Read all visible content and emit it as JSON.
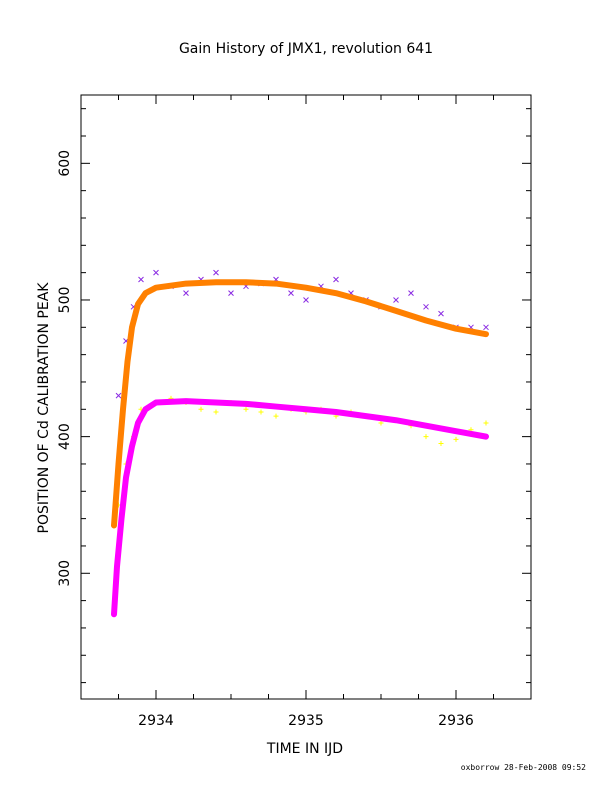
{
  "chart_data": {
    "type": "scatter",
    "title": "Gain History of JMX1, revolution 641",
    "xlabel": "TIME IN IJD",
    "ylabel": "POSITION OF Cd CALIBRATION PEAK",
    "xlim": [
      2933.5,
      2936.5
    ],
    "ylim": [
      208,
      650
    ],
    "x_ticks": [
      2934,
      2935,
      2936
    ],
    "x_tick_labels": [
      "2934",
      "2935",
      "2936"
    ],
    "y_ticks": [
      300,
      400,
      500,
      600
    ],
    "y_tick_labels": [
      "300",
      "400",
      "500",
      "600"
    ],
    "grid": false,
    "footer": "oxborrow 28-Feb-2008 09:52",
    "series": [
      {
        "marker": "x",
        "color": "#8a2be2",
        "x": [
          2933.75,
          2933.8,
          2933.85,
          2933.9,
          2934.0,
          2934.1,
          2934.2,
          2934.3,
          2934.4,
          2934.5,
          2934.6,
          2934.7,
          2934.8,
          2934.9,
          2935.0,
          2935.1,
          2935.2,
          2935.3,
          2935.4,
          2935.5,
          2935.6,
          2935.7,
          2935.8,
          2935.9,
          2936.0,
          2936.1,
          2936.2
        ],
        "y": [
          430,
          470,
          495,
          515,
          520,
          510,
          505,
          515,
          520,
          505,
          510,
          512,
          515,
          505,
          500,
          510,
          515,
          505,
          500,
          495,
          500,
          505,
          495,
          490,
          480,
          480,
          480
        ]
      },
      {
        "marker": "+",
        "color": "#ffff00",
        "x": [
          2933.75,
          2933.8,
          2933.85,
          2933.9,
          2934.0,
          2934.1,
          2934.2,
          2934.3,
          2934.4,
          2934.5,
          2934.6,
          2934.7,
          2934.8,
          2934.9,
          2935.0,
          2935.1,
          2935.2,
          2935.3,
          2935.4,
          2935.5,
          2935.6,
          2935.7,
          2935.8,
          2935.9,
          2936.0,
          2936.1,
          2936.2
        ],
        "y": [
          350,
          380,
          400,
          420,
          425,
          428,
          425,
          420,
          418,
          425,
          420,
          418,
          415,
          420,
          418,
          420,
          415,
          418,
          415,
          410,
          412,
          408,
          400,
          395,
          398,
          405,
          410
        ]
      },
      {
        "type": "line",
        "color": "#ff8000",
        "x": [
          2933.72,
          2933.75,
          2933.78,
          2933.81,
          2933.84,
          2933.88,
          2933.93,
          2934.0,
          2934.2,
          2934.4,
          2934.6,
          2934.8,
          2935.0,
          2935.2,
          2935.4,
          2935.6,
          2935.8,
          2936.0,
          2936.2
        ],
        "y": [
          335,
          380,
          420,
          455,
          480,
          497,
          505,
          509,
          512,
          513,
          513,
          512,
          509,
          505,
          499,
          492,
          485,
          479,
          475
        ]
      },
      {
        "type": "line",
        "color": "#ff00ff",
        "x": [
          2933.72,
          2933.74,
          2933.77,
          2933.8,
          2933.84,
          2933.88,
          2933.93,
          2934.0,
          2934.2,
          2934.4,
          2934.6,
          2934.8,
          2935.0,
          2935.2,
          2935.4,
          2935.6,
          2935.8,
          2936.0,
          2936.2
        ],
        "y": [
          270,
          305,
          340,
          370,
          393,
          410,
          420,
          425,
          426,
          425,
          424,
          422,
          420,
          418,
          415,
          412,
          408,
          404,
          400
        ]
      }
    ]
  }
}
